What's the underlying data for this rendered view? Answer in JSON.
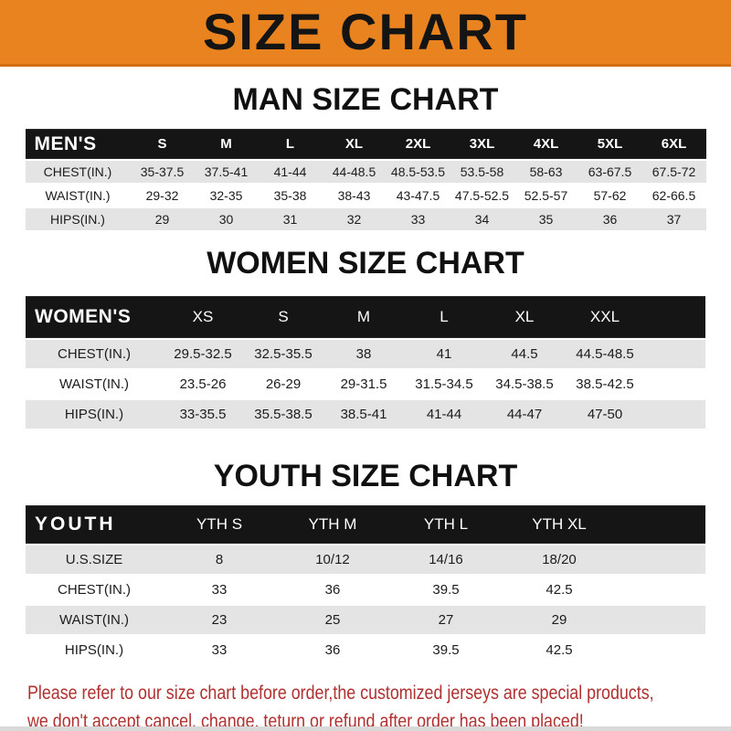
{
  "banner": {
    "title": "SIZE CHART"
  },
  "colors": {
    "banner_bg": "#E8831F",
    "header_bar_bg": "#151515",
    "stripe_gray": "#e4e4e4",
    "note_red": "#B03030"
  },
  "sections": [
    {
      "heading": "MAN SIZE CHART",
      "label": "MEN'S",
      "columns": [
        "S",
        "M",
        "L",
        "XL",
        "2XL",
        "3XL",
        "4XL",
        "5XL",
        "6XL"
      ],
      "rows": [
        {
          "label": "CHEST(IN.)",
          "values": [
            "35-37.5",
            "37.5-41",
            "41-44",
            "44-48.5",
            "48.5-53.5",
            "53.5-58",
            "58-63",
            "63-67.5",
            "67.5-72"
          ]
        },
        {
          "label": "WAIST(IN.)",
          "values": [
            "29-32",
            "32-35",
            "35-38",
            "38-43",
            "43-47.5",
            "47.5-52.5",
            "52.5-57",
            "57-62",
            "62-66.5"
          ]
        },
        {
          "label": "HIPS(IN.)",
          "values": [
            "29",
            "30",
            "31",
            "32",
            "33",
            "34",
            "35",
            "36",
            "37"
          ]
        }
      ]
    },
    {
      "heading": "WOMEN SIZE CHART",
      "label": "WOMEN'S",
      "columns": [
        "XS",
        "S",
        "M",
        "L",
        "XL",
        "XXL"
      ],
      "rows": [
        {
          "label": "CHEST(IN.)",
          "values": [
            "29.5-32.5",
            "32.5-35.5",
            "38",
            "41",
            "44.5",
            "44.5-48.5"
          ]
        },
        {
          "label": "WAIST(IN.)",
          "values": [
            "23.5-26",
            "26-29",
            "29-31.5",
            "31.5-34.5",
            "34.5-38.5",
            "38.5-42.5"
          ]
        },
        {
          "label": "HIPS(IN.)",
          "values": [
            "33-35.5",
            "35.5-38.5",
            "38.5-41",
            "41-44",
            "44-47",
            "47-50"
          ]
        }
      ]
    },
    {
      "heading": "YOUTH SIZE CHART",
      "label": "YOUTH",
      "columns": [
        "YTH S",
        "YTH M",
        "YTH L",
        "YTH XL"
      ],
      "rows": [
        {
          "label": "U.S.SIZE",
          "values": [
            "8",
            "10/12",
            "14/16",
            "18/20"
          ]
        },
        {
          "label": "CHEST(IN.)",
          "values": [
            "33",
            "36",
            "39.5",
            "42.5"
          ]
        },
        {
          "label": "WAIST(IN.)",
          "values": [
            "23",
            "25",
            "27",
            "29"
          ]
        },
        {
          "label": "HIPS(IN.)",
          "values": [
            "33",
            "36",
            "39.5",
            "42.5"
          ]
        }
      ]
    }
  ],
  "note": {
    "line1": "Please refer to our size chart before order,the customized jerseys are special products,",
    "line2": "we don't accept cancel, change, teturn or refund after order has been placed!"
  }
}
